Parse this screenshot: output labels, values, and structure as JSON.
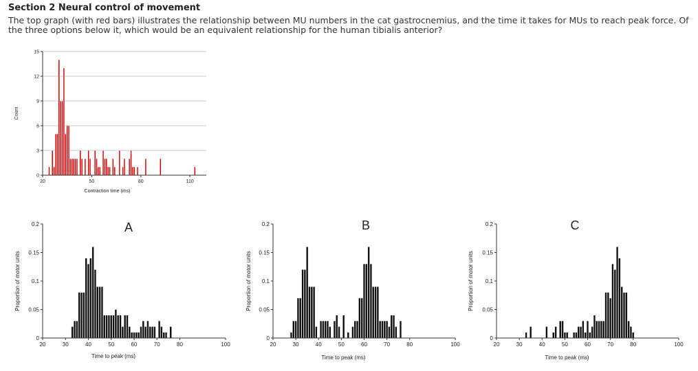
{
  "heading": "Section 2 Neural control of movement",
  "question": "The top graph (with red bars) illustrates the relationship between MU numbers in the cat gastrocnemius, and the time it takes for MUs to reach peak force. Of the three options below it, which would be an equivalent relationship for the human tibialis anterior?",
  "colors": {
    "top_bars": "#d40000",
    "option_bars": "#111111",
    "grid": "#c8c8c8"
  },
  "chart_data": [
    {
      "id": "top",
      "type": "bar",
      "title": "",
      "xlabel": "Contraction time (ms)",
      "ylabel": "Count",
      "xlim": [
        20,
        120
      ],
      "ylim": [
        0,
        15
      ],
      "xticks": [
        "20",
        "50",
        "80",
        "110"
      ],
      "xtick_values": [
        20,
        50,
        80,
        110
      ],
      "yticks": [
        "0",
        "3",
        "6",
        "9",
        "12",
        "15"
      ],
      "ytick_values": [
        0,
        3,
        6,
        9,
        12,
        15
      ],
      "bin_width": 1,
      "x": [
        24,
        26,
        27,
        28,
        29,
        30,
        31,
        32,
        33,
        34,
        35,
        36,
        37,
        38,
        39,
        40,
        41,
        42,
        43,
        44,
        45,
        46,
        47,
        48,
        49,
        50,
        51,
        52,
        53,
        54,
        55,
        56,
        57,
        58,
        59,
        60,
        61,
        62,
        63,
        64,
        65,
        66,
        67,
        68,
        69,
        70,
        71,
        72,
        73,
        74,
        75,
        76,
        77,
        78,
        79,
        80,
        81,
        82,
        83,
        84,
        85,
        86,
        87,
        88,
        89,
        90,
        91,
        92,
        93,
        94,
        95,
        96,
        97,
        98,
        99,
        100,
        101,
        102,
        103,
        104,
        105,
        106,
        107,
        108,
        109,
        110,
        111,
        112,
        113,
        114,
        115,
        116,
        117,
        118
      ],
      "values": [
        1,
        3,
        1,
        5,
        5,
        14,
        9,
        9,
        13,
        5,
        6,
        6,
        2,
        2,
        2,
        2,
        2,
        0,
        3,
        2,
        0,
        2,
        0,
        3,
        2,
        0,
        0,
        3,
        2,
        1,
        1,
        0,
        3,
        2,
        2,
        1,
        1,
        0,
        2,
        1,
        0,
        0,
        3,
        0,
        1,
        2,
        0,
        0,
        2,
        3,
        1,
        1,
        0,
        1,
        0,
        0,
        0,
        0,
        2,
        0,
        0,
        0,
        0,
        0,
        0,
        0,
        0,
        2,
        0,
        0,
        0,
        0,
        0,
        0,
        0,
        0,
        0,
        0,
        0,
        0,
        0,
        0,
        0,
        0,
        0,
        0,
        0,
        0,
        1,
        0,
        0,
        0,
        0,
        0
      ],
      "max_value": 14
    },
    {
      "id": "A",
      "type": "bar",
      "title": "A",
      "xlabel": "Time to peak (ms)",
      "ylabel": "Proportion of motor units",
      "xlim": [
        20,
        100
      ],
      "ylim": [
        0,
        0.2
      ],
      "xticks": [
        "20",
        "30",
        "40",
        "50",
        "60",
        "70",
        "80",
        "100"
      ],
      "xtick_values": [
        20,
        30,
        40,
        50,
        60,
        70,
        80,
        100
      ],
      "yticks": [
        "0",
        "0.05",
        "0.1",
        "0.15",
        "0.2"
      ],
      "ytick_values": [
        0,
        0.05,
        0.1,
        0.15,
        0.2
      ],
      "bin_width": 1,
      "x": [
        33,
        34,
        35,
        36,
        37,
        38,
        39,
        40,
        41,
        42,
        43,
        44,
        45,
        46,
        47,
        48,
        49,
        50,
        51,
        52,
        53,
        54,
        55,
        56,
        57,
        58,
        59,
        60,
        61,
        62,
        63,
        64,
        65,
        66,
        67,
        68,
        69,
        70,
        71,
        72,
        73,
        74,
        75,
        76,
        77,
        78,
        79,
        80,
        81,
        82,
        83,
        84,
        85,
        86,
        87,
        88,
        89,
        90,
        91,
        92,
        93,
        94,
        95,
        96
      ],
      "values": [
        0.02,
        0.03,
        0.03,
        0.08,
        0.08,
        0.08,
        0.14,
        0.13,
        0.14,
        0.16,
        0.12,
        0.09,
        0.09,
        0.09,
        0.04,
        0.04,
        0.04,
        0.04,
        0.04,
        0.05,
        0.04,
        0.04,
        0.02,
        0.04,
        0.04,
        0.02,
        0.01,
        0.01,
        0.01,
        0.01,
        0.02,
        0.03,
        0.02,
        0.03,
        0.02,
        0.02,
        0.02,
        0.0,
        0.03,
        0.02,
        0.01,
        0.01,
        0.0,
        0.02,
        0.0,
        0.0,
        0.0,
        0.0,
        0.0,
        0.0,
        0.0,
        0.0,
        0.0,
        0.0,
        0.0,
        0.0,
        0.0,
        0.0,
        0.0,
        0.0,
        0.0,
        0.0,
        0.0,
        0.0
      ]
    },
    {
      "id": "B",
      "type": "bar",
      "title": "B",
      "xlabel": "Time to peak (ms)",
      "ylabel": "Proportion of motor units",
      "xlim": [
        20,
        100
      ],
      "ylim": [
        0,
        0.2
      ],
      "xticks": [
        "20",
        "30",
        "40",
        "50",
        "60",
        "70",
        "80",
        "100"
      ],
      "xtick_values": [
        20,
        30,
        40,
        50,
        60,
        70,
        80,
        100
      ],
      "yticks": [
        "0",
        "0.05",
        "0.1",
        "0.15",
        "0.2"
      ],
      "ytick_values": [
        0,
        0.05,
        0.1,
        0.15,
        0.2
      ],
      "bin_width": 1,
      "x": [
        28,
        29,
        30,
        31,
        32,
        33,
        34,
        35,
        36,
        37,
        38,
        39,
        40,
        41,
        42,
        43,
        44,
        45,
        46,
        47,
        48,
        49,
        50,
        51,
        52,
        53,
        54,
        55,
        56,
        57,
        58,
        59,
        60,
        61,
        62,
        63,
        64,
        65,
        66,
        67,
        68,
        69,
        70,
        71,
        72,
        73,
        74,
        75,
        76,
        77,
        78,
        79,
        80,
        81,
        82,
        83,
        84,
        85,
        86
      ],
      "values": [
        0.01,
        0.03,
        0.03,
        0.07,
        0.07,
        0.12,
        0.12,
        0.16,
        0.09,
        0.09,
        0.09,
        0.02,
        0.0,
        0.03,
        0.03,
        0.03,
        0.03,
        0.02,
        0.0,
        0.03,
        0.04,
        0.02,
        0.0,
        0.04,
        0.0,
        0.01,
        0.0,
        0.02,
        0.03,
        0.03,
        0.07,
        0.07,
        0.13,
        0.13,
        0.16,
        0.13,
        0.09,
        0.09,
        0.09,
        0.03,
        0.03,
        0.03,
        0.03,
        0.02,
        0.04,
        0.04,
        0.02,
        0.0,
        0.03,
        0.0,
        0.0,
        0.0,
        0.0,
        0.0,
        0.0,
        0.0,
        0.0,
        0.0,
        0.0
      ]
    },
    {
      "id": "C",
      "type": "bar",
      "title": "C",
      "xlabel": "Time to peak (ms)",
      "ylabel": "Proportion of motor units",
      "xlim": [
        20,
        100
      ],
      "ylim": [
        0,
        0.2
      ],
      "xticks": [
        "20",
        "30",
        "40",
        "50",
        "60",
        "70",
        "80",
        "100"
      ],
      "xtick_values": [
        20,
        30,
        40,
        50,
        60,
        70,
        80,
        100
      ],
      "yticks": [
        "0",
        "0.05",
        "0.1",
        "0.15",
        "0.2"
      ],
      "ytick_values": [
        0,
        0.05,
        0.1,
        0.15,
        0.2
      ],
      "bin_width": 1,
      "x": [
        33,
        34,
        35,
        36,
        37,
        38,
        39,
        40,
        41,
        42,
        43,
        44,
        45,
        46,
        47,
        48,
        49,
        50,
        51,
        52,
        53,
        54,
        55,
        56,
        57,
        58,
        59,
        60,
        61,
        62,
        63,
        64,
        65,
        66,
        67,
        68,
        69,
        70,
        71,
        72,
        73,
        74,
        75,
        76,
        77,
        78,
        79,
        80,
        81,
        82,
        83,
        84,
        85,
        86,
        87,
        88,
        89,
        90,
        91,
        92
      ],
      "values": [
        0.01,
        0.0,
        0.02,
        0.0,
        0.0,
        0.0,
        0.0,
        0.0,
        0.0,
        0.02,
        0.0,
        0.0,
        0.01,
        0.02,
        0.0,
        0.03,
        0.03,
        0.01,
        0.01,
        0.0,
        0.0,
        0.01,
        0.01,
        0.02,
        0.02,
        0.03,
        0.01,
        0.03,
        0.01,
        0.02,
        0.04,
        0.03,
        0.03,
        0.03,
        0.03,
        0.08,
        0.08,
        0.07,
        0.13,
        0.12,
        0.16,
        0.14,
        0.09,
        0.08,
        0.08,
        0.03,
        0.02,
        0.01,
        0.0,
        0.0,
        0.0,
        0.0,
        0.0,
        0.0,
        0.0,
        0.0,
        0.0,
        0.0,
        0.0,
        0.0
      ]
    }
  ]
}
